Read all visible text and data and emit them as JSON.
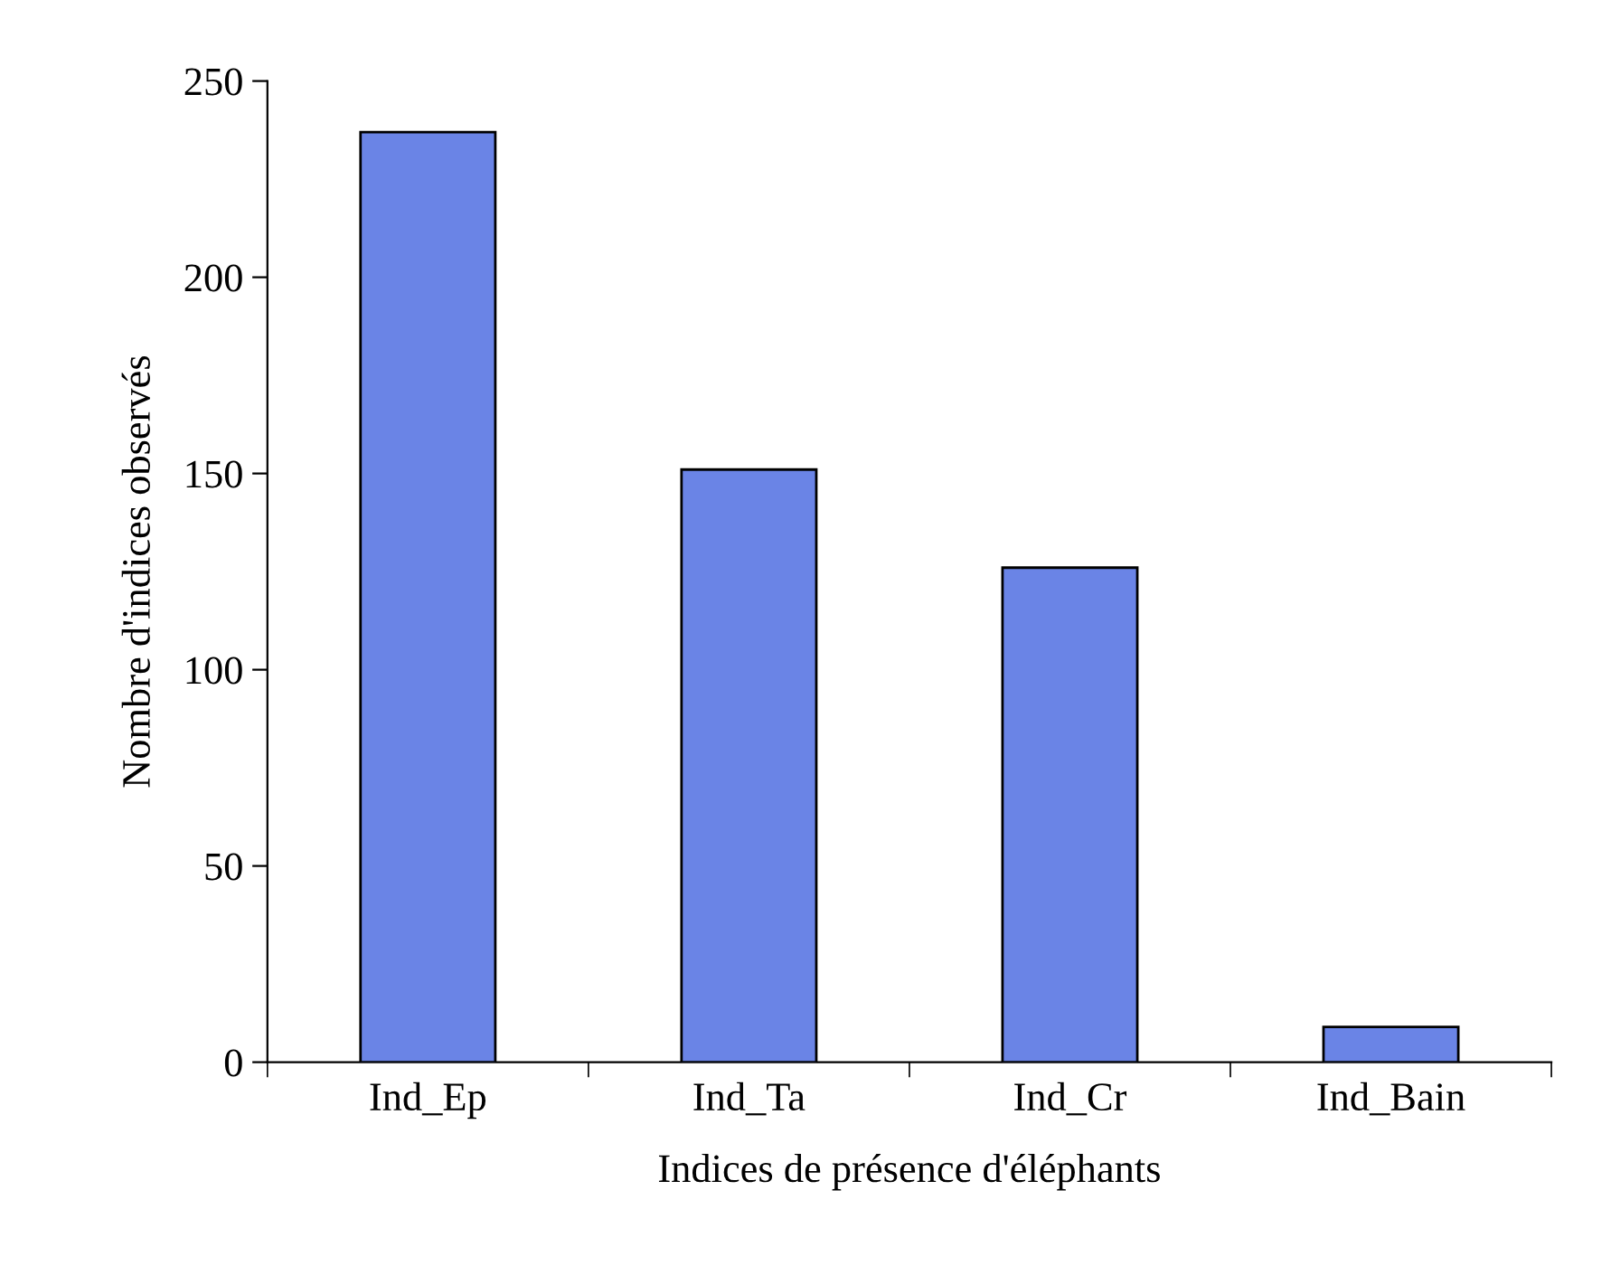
{
  "chart_data": {
    "type": "bar",
    "xlabel": "Indices de présence d'éléphants",
    "ylabel": "Nombre d'indices observés",
    "categories": [
      "Ind_Ep",
      "Ind_Ta",
      "Ind_Cr",
      "Ind_Bain"
    ],
    "values": [
      237,
      151,
      126,
      9
    ],
    "color": "#6a84e6",
    "ylim": [
      0,
      250
    ],
    "yticks": [
      0,
      50,
      100,
      150,
      200,
      250
    ],
    "grid": false,
    "legend": false
  }
}
